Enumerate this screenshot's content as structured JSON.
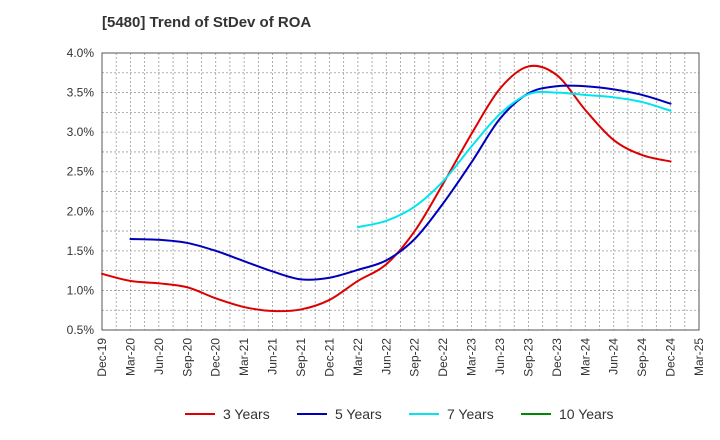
{
  "chart_data": {
    "type": "line",
    "title": "[5480]  Trend of StDev of ROA",
    "xlabel": "",
    "ylabel": "",
    "x_ticks": [
      "Dec-19",
      "Mar-20",
      "Jun-20",
      "Sep-20",
      "Dec-20",
      "Mar-21",
      "Jun-21",
      "Sep-21",
      "Dec-21",
      "Mar-22",
      "Jun-22",
      "Sep-22",
      "Dec-22",
      "Mar-23",
      "Jun-23",
      "Sep-23",
      "Dec-23",
      "Mar-24",
      "Jun-24",
      "Sep-24",
      "Dec-24",
      "Mar-25"
    ],
    "y_ticks": [
      "0.5%",
      "1.0%",
      "1.5%",
      "2.0%",
      "2.5%",
      "3.0%",
      "3.5%",
      "4.0%"
    ],
    "ylim": [
      0.5,
      4.0
    ],
    "grid": true,
    "legend_position": "bottom",
    "series": [
      {
        "name": "3 Years",
        "color": "#dd0000",
        "x": [
          "Dec-19",
          "Mar-20",
          "Jun-20",
          "Sep-20",
          "Dec-20",
          "Mar-21",
          "Jun-21",
          "Sep-21",
          "Dec-21",
          "Mar-22",
          "Jun-22",
          "Sep-22",
          "Dec-22",
          "Mar-23",
          "Jun-23",
          "Sep-23",
          "Dec-23",
          "Mar-24",
          "Jun-24",
          "Sep-24",
          "Dec-24"
        ],
        "values": [
          1.21,
          1.12,
          1.09,
          1.04,
          0.9,
          0.79,
          0.74,
          0.76,
          0.88,
          1.12,
          1.33,
          1.75,
          2.35,
          2.98,
          3.55,
          3.83,
          3.72,
          3.28,
          2.9,
          2.71,
          2.63
        ]
      },
      {
        "name": "5 Years",
        "color": "#0000bb",
        "x": [
          "Mar-20",
          "Jun-20",
          "Sep-20",
          "Dec-20",
          "Mar-21",
          "Jun-21",
          "Sep-21",
          "Dec-21",
          "Mar-22",
          "Jun-22",
          "Sep-22",
          "Dec-22",
          "Mar-23",
          "Jun-23",
          "Sep-23",
          "Dec-23",
          "Mar-24",
          "Jun-24",
          "Sep-24",
          "Dec-24"
        ],
        "values": [
          1.65,
          1.64,
          1.6,
          1.5,
          1.37,
          1.24,
          1.14,
          1.16,
          1.26,
          1.38,
          1.65,
          2.1,
          2.62,
          3.17,
          3.49,
          3.58,
          3.58,
          3.54,
          3.47,
          3.36
        ]
      },
      {
        "name": "7 Years",
        "color": "#00e5ee",
        "x": [
          "Mar-22",
          "Jun-22",
          "Sep-22",
          "Dec-22",
          "Mar-23",
          "Jun-23",
          "Sep-23",
          "Dec-23",
          "Mar-24",
          "Jun-24",
          "Sep-24",
          "Dec-24"
        ],
        "values": [
          1.8,
          1.88,
          2.06,
          2.38,
          2.82,
          3.23,
          3.48,
          3.5,
          3.47,
          3.44,
          3.38,
          3.27
        ]
      },
      {
        "name": "10 Years",
        "color": "#008800",
        "x": [],
        "values": []
      }
    ]
  }
}
